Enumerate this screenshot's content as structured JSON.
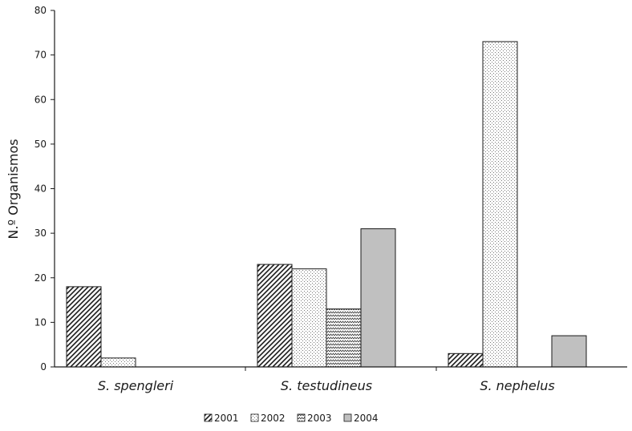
{
  "chart_data": {
    "type": "bar",
    "ylabel": "N.º Organismos",
    "xlabel": "",
    "ylim": [
      0,
      80
    ],
    "yticks": [
      0,
      10,
      20,
      30,
      40,
      50,
      60,
      70,
      80
    ],
    "grid": false,
    "legend_position": "bottom-center",
    "categories": [
      "S. spengleri",
      "S. testudineus",
      "S. nephelus"
    ],
    "series": [
      {
        "name": "2001",
        "pattern": "diagonal-hatch",
        "values": [
          18,
          23,
          3
        ]
      },
      {
        "name": "2002",
        "pattern": "fine-dots",
        "values": [
          2,
          22,
          73
        ]
      },
      {
        "name": "2003",
        "pattern": "zigzag",
        "values": [
          0,
          13,
          0
        ]
      },
      {
        "name": "2004",
        "pattern": "solid-gray",
        "color": "#c0c0c0",
        "values": [
          0,
          31,
          7
        ]
      }
    ]
  }
}
